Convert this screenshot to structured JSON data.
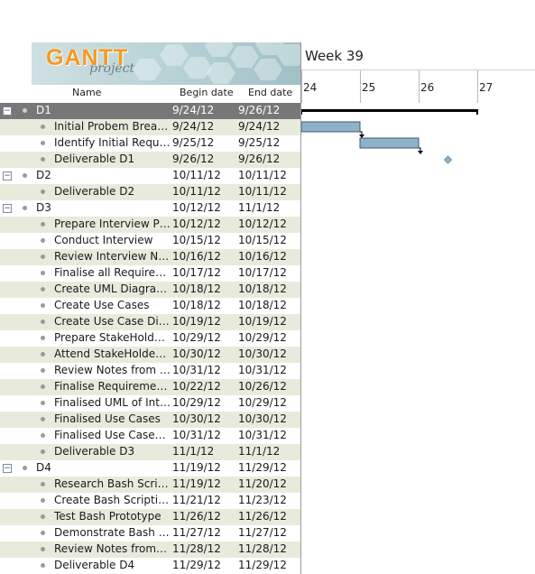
{
  "logo": {
    "main": "GANTT",
    "sub": "project"
  },
  "columns": {
    "name": "Name",
    "begin": "Begin date",
    "end": "End date"
  },
  "timeline": {
    "week": "Week 39",
    "days": [
      "24",
      "25",
      "26",
      "27"
    ]
  },
  "tasks": [
    {
      "type": "group",
      "name": "D1",
      "begin": "9/24/12",
      "end": "9/26/12",
      "toggle": "−",
      "selected": true
    },
    {
      "type": "task",
      "name": "Initial Probem Break…",
      "begin": "9/24/12",
      "end": "9/24/12"
    },
    {
      "type": "task",
      "name": "Identify Initial Requir…",
      "begin": "9/25/12",
      "end": "9/25/12"
    },
    {
      "type": "task",
      "name": "Deliverable D1",
      "begin": "9/26/12",
      "end": "9/26/12"
    },
    {
      "type": "group",
      "name": "D2",
      "begin": "10/11/12",
      "end": "10/11/12",
      "toggle": "−"
    },
    {
      "type": "task",
      "name": "Deliverable D2",
      "begin": "10/11/12",
      "end": "10/11/12"
    },
    {
      "type": "group",
      "name": "D3",
      "begin": "10/12/12",
      "end": "11/1/12",
      "toggle": "−"
    },
    {
      "type": "task",
      "name": "Prepare Interview Plan",
      "begin": "10/12/12",
      "end": "10/12/12"
    },
    {
      "type": "task",
      "name": "Conduct Interview",
      "begin": "10/15/12",
      "end": "10/15/12"
    },
    {
      "type": "task",
      "name": "Review Interview No…",
      "begin": "10/16/12",
      "end": "10/16/12"
    },
    {
      "type": "task",
      "name": "Finalise all Require…",
      "begin": "10/17/12",
      "end": "10/17/12"
    },
    {
      "type": "task",
      "name": "Create UML Diagra…",
      "begin": "10/18/12",
      "end": "10/18/12"
    },
    {
      "type": "task",
      "name": "Create Use Cases",
      "begin": "10/18/12",
      "end": "10/18/12"
    },
    {
      "type": "task",
      "name": "Create Use Case Dia…",
      "begin": "10/19/12",
      "end": "10/19/12"
    },
    {
      "type": "task",
      "name": "Prepare StakeHolde…",
      "begin": "10/29/12",
      "end": "10/29/12"
    },
    {
      "type": "task",
      "name": "Attend StakeHolder…",
      "begin": "10/30/12",
      "end": "10/30/12"
    },
    {
      "type": "task",
      "name": "Review Notes from S…",
      "begin": "10/31/12",
      "end": "10/31/12"
    },
    {
      "type": "task",
      "name": "Finalise Requiremen…",
      "begin": "10/22/12",
      "end": "10/26/12"
    },
    {
      "type": "task",
      "name": "Finalised UML of Inte…",
      "begin": "10/29/12",
      "end": "10/29/12"
    },
    {
      "type": "task",
      "name": "Finalised Use Cases",
      "begin": "10/30/12",
      "end": "10/30/12"
    },
    {
      "type": "task",
      "name": "Finalised Use Case…",
      "begin": "10/31/12",
      "end": "10/31/12"
    },
    {
      "type": "task",
      "name": "Deliverable D3",
      "begin": "11/1/12",
      "end": "11/1/12"
    },
    {
      "type": "group",
      "name": "D4",
      "begin": "11/19/12",
      "end": "11/29/12",
      "toggle": "−"
    },
    {
      "type": "task",
      "name": "Research Bash Scrip…",
      "begin": "11/19/12",
      "end": "11/20/12"
    },
    {
      "type": "task",
      "name": "Create Bash Scripting",
      "begin": "11/21/12",
      "end": "11/23/12"
    },
    {
      "type": "task",
      "name": "Test Bash Prototype",
      "begin": "11/26/12",
      "end": "11/26/12"
    },
    {
      "type": "task",
      "name": "Demonstrate Bash P…",
      "begin": "11/27/12",
      "end": "11/27/12"
    },
    {
      "type": "task",
      "name": "Review Notes from…",
      "begin": "11/28/12",
      "end": "11/28/12"
    },
    {
      "type": "task",
      "name": "Deliverable D4",
      "begin": "11/29/12",
      "end": "11/29/12"
    }
  ],
  "colors": {
    "bar_fill": "#8fb2c9",
    "bar_stroke": "#3c5b73",
    "summary": "#000000",
    "milestone": "#8fb2c9",
    "selected_row": "#777777",
    "alt_row": "#e8ebdc"
  }
}
